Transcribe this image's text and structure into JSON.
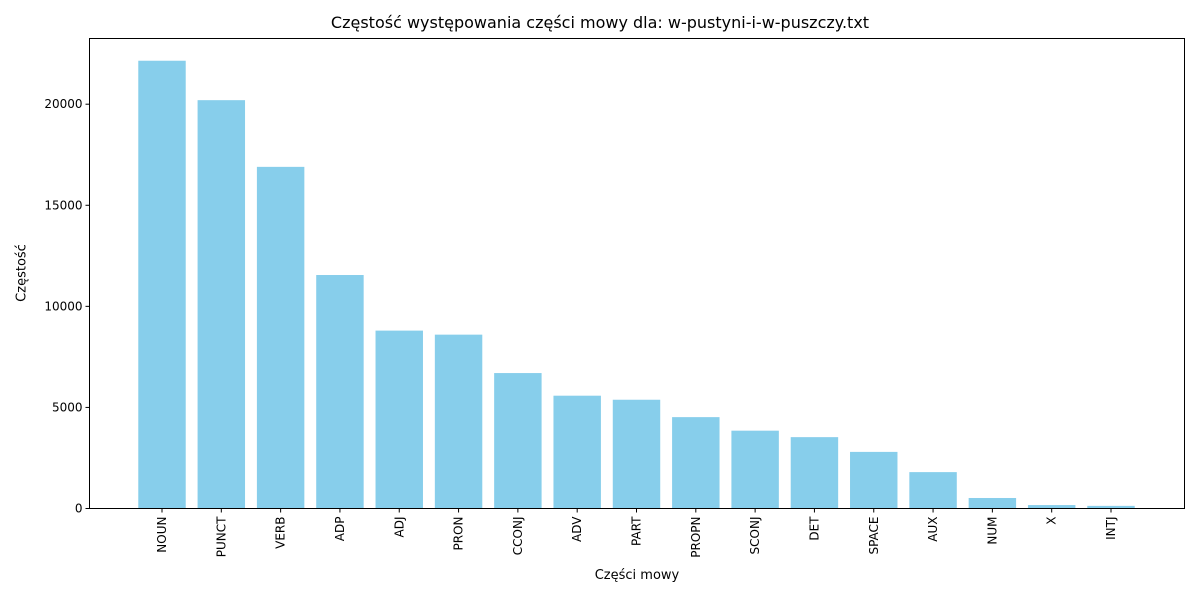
{
  "chart_data": {
    "type": "bar",
    "title": "Częstość występowania części mowy dla: w-pustyni-i-w-puszczy.txt",
    "xlabel": "Części mowy",
    "ylabel": "Częstość",
    "categories": [
      "NOUN",
      "PUNCT",
      "VERB",
      "ADP",
      "ADJ",
      "PRON",
      "CCONJ",
      "ADV",
      "PART",
      "PROPN",
      "SCONJ",
      "DET",
      "SPACE",
      "AUX",
      "NUM",
      "X",
      "INTJ"
    ],
    "values": [
      22150,
      20200,
      16900,
      11550,
      8800,
      8600,
      6700,
      5580,
      5380,
      4520,
      3850,
      3530,
      2800,
      1800,
      520,
      170,
      130
    ],
    "ylim": [
      0,
      23250
    ],
    "yticks": [
      0,
      5000,
      10000,
      15000,
      20000
    ],
    "yticklabels": [
      "0",
      "5000",
      "10000",
      "15000",
      "20000"
    ],
    "bar_color": "#87ceeb",
    "grid": false,
    "legend": "none"
  }
}
